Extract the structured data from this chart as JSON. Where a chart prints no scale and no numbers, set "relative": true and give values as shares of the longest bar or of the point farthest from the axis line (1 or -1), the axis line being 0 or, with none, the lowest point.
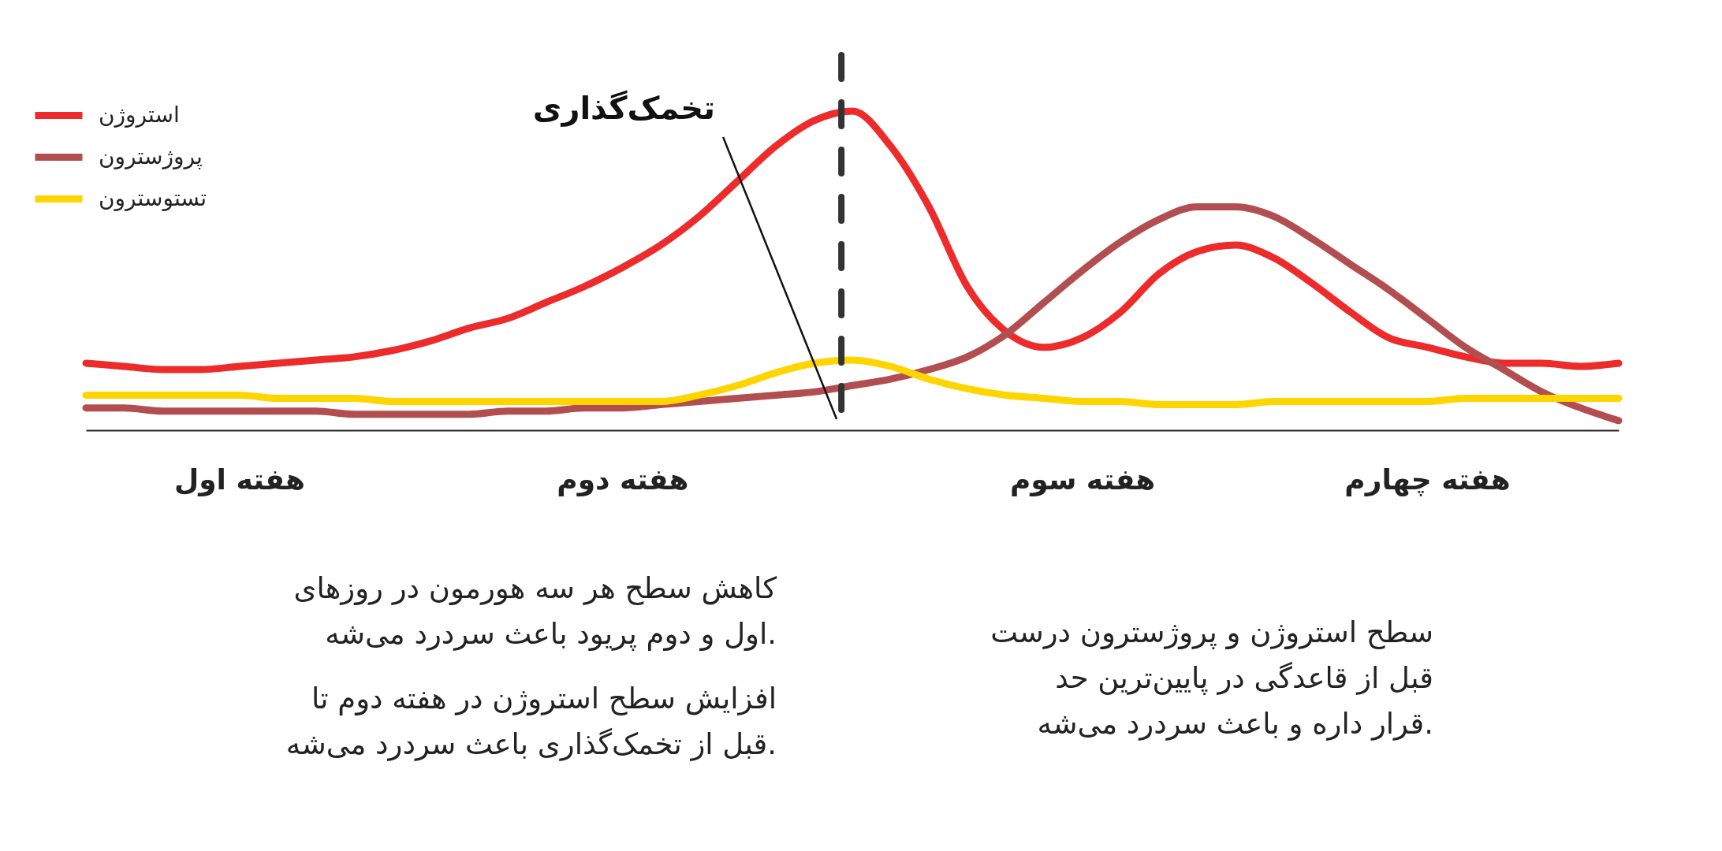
{
  "chart_data": {
    "type": "line",
    "relative": true,
    "legend": "top left",
    "grid": false,
    "marker": "none",
    "line_style": "solid",
    "categories": [
      null,
      null,
      null,
      null,
      "هفته اول",
      null,
      null,
      null,
      null,
      null,
      null,
      null,
      null,
      null,
      "هفته دوم",
      null,
      null,
      null,
      null,
      null,
      null,
      null,
      null,
      null,
      null,
      null,
      "هفته سوم",
      null,
      null,
      null,
      null,
      null,
      null,
      null,
      null,
      "هفته چهارم",
      null,
      null,
      null,
      null,
      null
    ],
    "series": [
      {
        "name": "استروژن",
        "color": "#ee2b2b",
        "values": [
          0.21,
          0.2,
          0.19,
          0.19,
          0.2,
          0.21,
          0.22,
          0.23,
          0.25,
          0.28,
          0.32,
          0.35,
          0.4,
          0.45,
          0.51,
          0.58,
          0.67,
          0.78,
          0.89,
          0.97,
          1.0,
          0.89,
          0.7,
          0.45,
          0.31,
          0.26,
          0.29,
          0.37,
          0.49,
          0.56,
          0.58,
          0.54,
          0.46,
          0.37,
          0.29,
          0.26,
          0.23,
          0.21,
          0.21,
          0.2,
          0.21
        ]
      },
      {
        "name": "پروژسترون",
        "color": "#b34e50",
        "values": [
          0.07,
          0.07,
          0.06,
          0.06,
          0.06,
          0.06,
          0.06,
          0.05,
          0.05,
          0.05,
          0.05,
          0.06,
          0.06,
          0.07,
          0.07,
          0.08,
          0.09,
          0.1,
          0.11,
          0.12,
          0.14,
          0.16,
          0.19,
          0.23,
          0.3,
          0.4,
          0.5,
          0.59,
          0.66,
          0.7,
          0.7,
          0.67,
          0.6,
          0.52,
          0.44,
          0.35,
          0.26,
          0.19,
          0.12,
          0.07,
          0.03
        ]
      },
      {
        "name": "تستوسترون",
        "color": "#ffd500",
        "values": [
          0.11,
          0.11,
          0.11,
          0.11,
          0.11,
          0.1,
          0.1,
          0.1,
          0.09,
          0.09,
          0.09,
          0.09,
          0.09,
          0.09,
          0.09,
          0.09,
          0.11,
          0.14,
          0.18,
          0.21,
          0.22,
          0.2,
          0.16,
          0.13,
          0.11,
          0.1,
          0.09,
          0.09,
          0.08,
          0.08,
          0.08,
          0.09,
          0.09,
          0.09,
          0.09,
          0.09,
          0.1,
          0.1,
          0.1,
          0.1,
          0.1
        ]
      }
    ],
    "annotations": [
      "تخمک‌گذاری",
      "کاهش سطح هر سه هورمون در روزهای اول و دوم پریود باعث سردرد می‌شه.",
      "افزایش سطح استروژن در هفته دوم تا قبل از تخمک‌گذاری باعث سردرد می‌شه.",
      "سطح استروژن و پروژسترون درست قبل از قاعدگی در پایین‌ترین حد قرار داره و باعث سردرد می‌شه."
    ]
  }
}
